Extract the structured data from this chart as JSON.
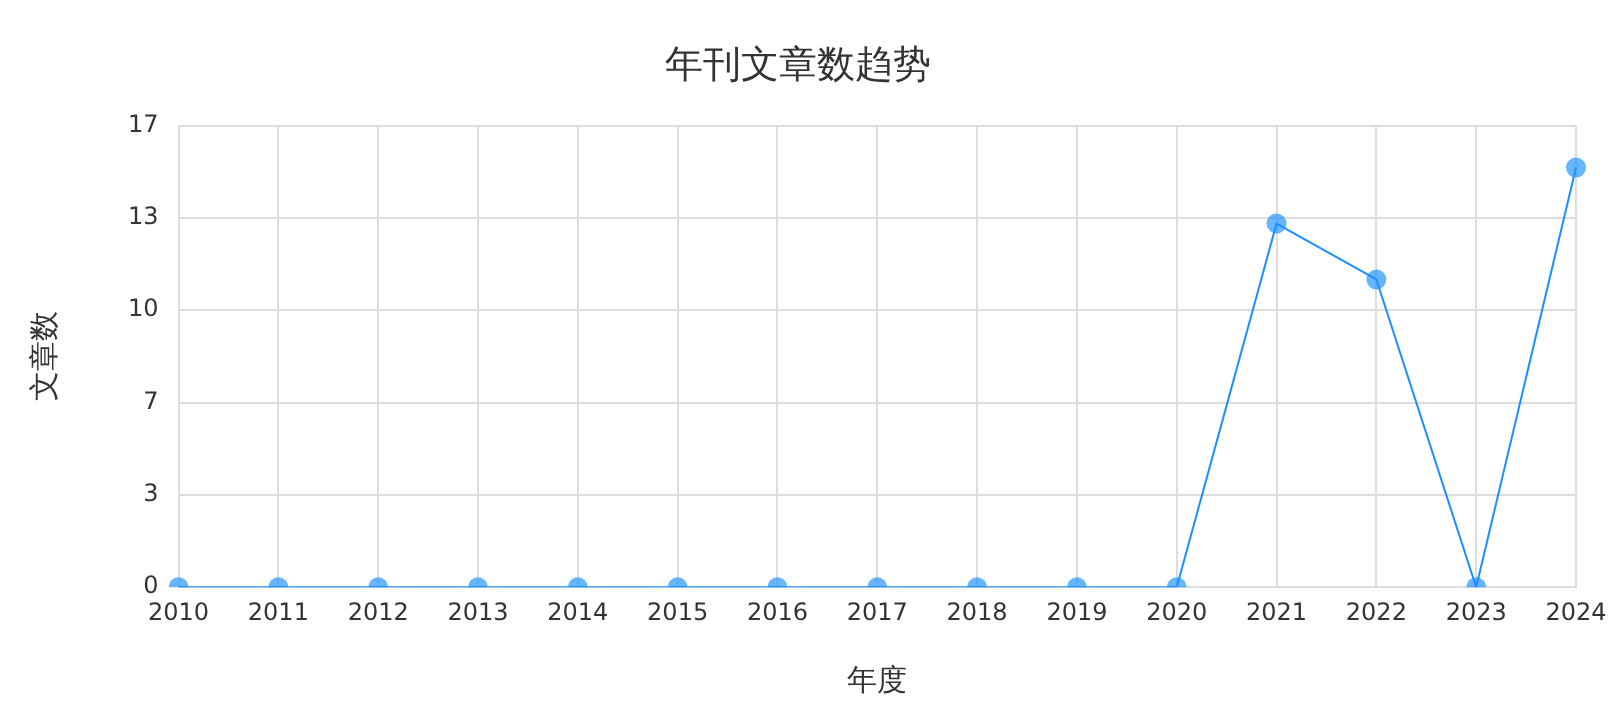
{
  "chart_data": {
    "type": "line",
    "title": "年刊文章数趋势",
    "xlabel": "年度",
    "ylabel": "文章数",
    "categories": [
      "2010",
      "2011",
      "2012",
      "2013",
      "2014",
      "2015",
      "2016",
      "2017",
      "2018",
      "2019",
      "2020",
      "2021",
      "2022",
      "2023",
      "2024"
    ],
    "series": [
      {
        "color": "#1890ff",
        "values": [
          0,
          0,
          0,
          0,
          0,
          0,
          0,
          0,
          0,
          0,
          0,
          13,
          11,
          0,
          15
        ]
      }
    ],
    "ylim": [
      0,
      16.5
    ],
    "yticks": [
      0,
      {
        "value": 3.3,
        "label": "3"
      },
      {
        "value": 6.6,
        "label": "7"
      },
      {
        "value": 9.9,
        "label": "10"
      },
      {
        "value": 13.2,
        "label": "13"
      },
      {
        "value": 16.5,
        "label": "17"
      }
    ],
    "grid": true,
    "marker": "circle",
    "line_style": "solid"
  }
}
